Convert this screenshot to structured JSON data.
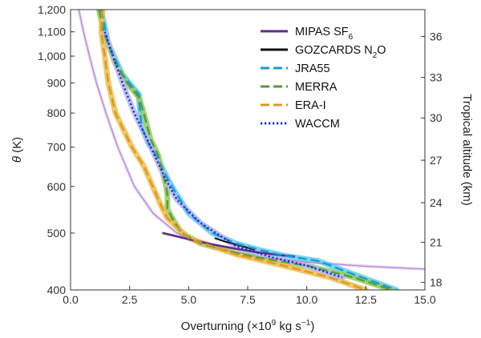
{
  "chart_data": {
    "type": "line",
    "xlabel": "Overturning (×10",
    "xlabel_sup": "9",
    "xlabel_rest": " kg s",
    "xlabel_sup2": "−1",
    "xlabel_end": ")",
    "ylabel_symbol": "θ",
    "ylabel_unit": " (K)",
    "y2label": "Tropical altitude (km)",
    "xlim": [
      0,
      15
    ],
    "ylim": [
      400,
      1200
    ],
    "yscale": "log",
    "xticks": [
      0,
      2.5,
      5,
      7.5,
      10,
      12.5,
      15
    ],
    "xtick_labels": [
      "0.0",
      "2.5",
      "5.0",
      "7.5",
      "10.0",
      "12.5",
      "15.0"
    ],
    "yticks": [
      400,
      500,
      600,
      700,
      800,
      900,
      1000,
      1100,
      1200
    ],
    "ytick_labels": [
      "400",
      "500",
      "600",
      "700",
      "800",
      "900",
      "1,000",
      "1,100",
      "1,200"
    ],
    "y2ticks": [
      {
        "theta": 412,
        "label": "18"
      },
      {
        "theta": 482,
        "label": "21"
      },
      {
        "theta": 563,
        "label": "24"
      },
      {
        "theta": 665,
        "label": "27"
      },
      {
        "theta": 785,
        "label": "30"
      },
      {
        "theta": 920,
        "label": "33"
      },
      {
        "theta": 1080,
        "label": "36"
      }
    ],
    "legend_position": "top-right",
    "series": [
      {
        "name": "MIPAS SF",
        "name_sub": "6",
        "color": "#5b2d8c",
        "band_color": "#c9a5e6",
        "style": "solid",
        "thick": true,
        "x": [
          3.9,
          5.0,
          6.0,
          7.0,
          8.0,
          9.0,
          9.5
        ],
        "y": [
          500,
          488,
          478,
          470,
          463,
          458,
          456
        ]
      },
      {
        "name": "MIPAS SF",
        "name_sub": "6",
        "legend": false,
        "color": "#b07ed6",
        "style": "solid",
        "thick": false,
        "band": 0.25,
        "x": [
          0.35,
          0.55,
          0.8,
          1.1,
          1.5,
          2.0,
          2.7,
          3.5,
          4.5,
          6.0,
          8.0,
          10.0,
          12.5,
          15.0
        ],
        "y": [
          1200,
          1100,
          1000,
          900,
          800,
          700,
          600,
          540,
          500,
          473,
          455,
          446,
          439,
          434
        ]
      },
      {
        "name": "GOZCARDS N",
        "name_sub": "2",
        "name_after": "O",
        "color": "#111111",
        "style": "solid",
        "x": [
          6.1,
          6.5,
          7.0,
          7.5,
          7.8
        ],
        "y": [
          490,
          484,
          478,
          472,
          468
        ]
      },
      {
        "name": "JRA55",
        "color": "#1a9bd0",
        "band_color": "#5fd0ee",
        "style": "dashed",
        "x": [
          1.3,
          1.6,
          2.2,
          2.9,
          2.9,
          3.0,
          3.3,
          3.6,
          4.1,
          4.4,
          5.0,
          6.0,
          7.0,
          8.0,
          9.0,
          10.5,
          12.0,
          13.8
        ],
        "y": [
          1200,
          1050,
          930,
          860,
          840,
          760,
          710,
          680,
          620,
          590,
          540,
          500,
          480,
          468,
          458,
          448,
          425,
          400
        ]
      },
      {
        "name": "MERRA",
        "color": "#5a9a3a",
        "band_color": "#8fcc5e",
        "style": "dashed",
        "x": [
          1.2,
          1.4,
          1.9,
          2.4,
          2.9,
          3.1,
          3.4,
          3.7,
          4.05,
          4.1,
          4.1,
          4.3,
          4.7,
          5.5,
          7.0,
          8.5,
          10.0,
          12.0,
          13.6
        ],
        "y": [
          1200,
          1100,
          970,
          900,
          850,
          800,
          720,
          680,
          600,
          580,
          550,
          530,
          500,
          480,
          462,
          450,
          440,
          420,
          400
        ]
      },
      {
        "name": "ERA-I",
        "color": "#d89a25",
        "band_color": "#f0bd4a",
        "style": "dashed",
        "x": [
          1.35,
          1.3,
          1.45,
          1.6,
          1.9,
          2.6,
          3.1,
          3.4,
          3.8,
          4.1,
          5.0,
          7.0,
          9.0,
          11.0,
          12.5
        ],
        "y": [
          1200,
          1100,
          1000,
          900,
          800,
          700,
          650,
          610,
          560,
          530,
          490,
          460,
          440,
          420,
          400
        ]
      },
      {
        "name": "WACCM",
        "color": "#1a2fd6",
        "band_color": "#b9b7f2",
        "style": "dotted",
        "x": [
          1.45,
          1.8,
          2.2,
          2.7,
          3.4,
          4.0,
          4.5,
          5.5,
          7.0,
          8.5,
          10.0,
          11.5
        ],
        "y": [
          1100,
          1000,
          900,
          800,
          700,
          620,
          570,
          520,
          475,
          455,
          440,
          420
        ]
      }
    ]
  }
}
